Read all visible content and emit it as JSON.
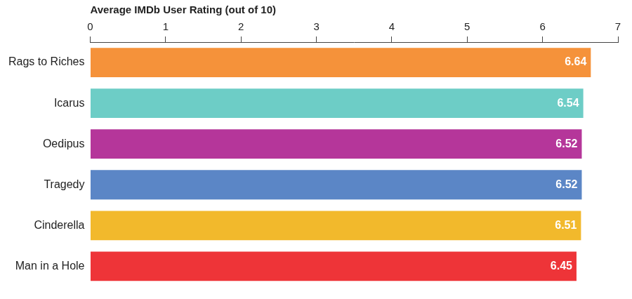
{
  "chart_data": {
    "type": "bar",
    "orientation": "horizontal",
    "xlabel": "Average IMDb User Rating (out of 10)",
    "categories": [
      "Rags to Riches",
      "Icarus",
      "Oedipus",
      "Tragedy",
      "Cinderella",
      "Man in a Hole"
    ],
    "values": [
      6.64,
      6.54,
      6.52,
      6.52,
      6.51,
      6.45
    ],
    "colors": [
      "#f5923a",
      "#6dcdc6",
      "#b5369a",
      "#5b86c6",
      "#f2b92c",
      "#ee3438"
    ],
    "xlim": [
      0,
      7
    ],
    "xticks": [
      0,
      1,
      2,
      3,
      4,
      5,
      6,
      7
    ],
    "grid": false,
    "data_labels": true
  }
}
